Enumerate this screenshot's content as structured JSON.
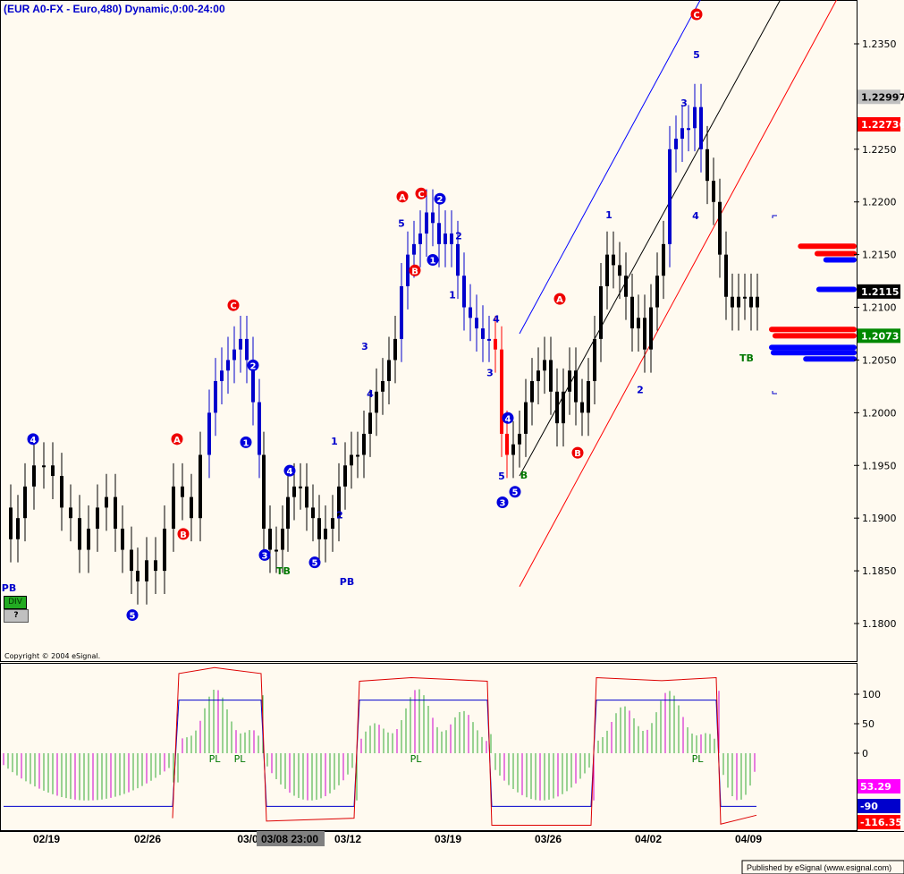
{
  "header": {
    "title": "(EUR A0-FX - Euro,480) Dynamic,0:00-24:00"
  },
  "copyright": "Copyright © 2004 eSignal.",
  "footer": "Published by eSignal (www.esignal.com)",
  "buttons": {
    "div": "DIV",
    "question": "?"
  },
  "crosshair_date": "03/08 23:00",
  "colors": {
    "up_blue": "#0000cc",
    "down_red": "#ff0000",
    "bar_black": "#000000",
    "label_green": "#007700",
    "osc_green": "#33aa33",
    "osc_magenta": "#cc00cc"
  },
  "chart_data": [
    {
      "type": "ohlc-candlestick",
      "title": "(EUR A0-FX - Euro,480) Dynamic,0:00-24:00",
      "x_tick_labels": [
        "02/19",
        "02/26",
        "03/0",
        "03/12",
        "03/19",
        "03/26",
        "04/02",
        "04/09"
      ],
      "y_tick_labels": [
        "1.2350",
        "1.2250",
        "1.2200",
        "1.2150",
        "1.2100",
        "1.2050",
        "1.2000",
        "1.1950",
        "1.1900",
        "1.1850",
        "1.1800"
      ],
      "ylim": [
        1.177,
        1.2375
      ],
      "price_tags": [
        {
          "label": "1.22997",
          "style": "gray"
        },
        {
          "label": "1.22736",
          "style": "red"
        },
        {
          "label": "1.2115",
          "style": "black"
        },
        {
          "label": "1.2073",
          "style": "green"
        }
      ],
      "close_trace": [
        [
          0,
          1.191
        ],
        [
          8,
          1.188
        ],
        [
          16,
          1.19
        ],
        [
          24,
          1.193
        ],
        [
          34,
          1.195
        ],
        [
          45,
          1.195
        ],
        [
          55,
          1.194
        ],
        [
          65,
          1.191
        ],
        [
          75,
          1.19
        ],
        [
          85,
          1.187
        ],
        [
          95,
          1.189
        ],
        [
          105,
          1.191
        ],
        [
          115,
          1.192
        ],
        [
          125,
          1.189
        ],
        [
          133,
          1.187
        ],
        [
          143,
          1.185
        ],
        [
          150,
          1.184
        ],
        [
          160,
          1.186
        ],
        [
          170,
          1.185
        ],
        [
          180,
          1.189
        ],
        [
          190,
          1.193
        ],
        [
          200,
          1.192
        ],
        [
          210,
          1.19
        ],
        [
          220,
          1.196
        ],
        [
          230,
          1.2
        ],
        [
          237,
          1.203
        ],
        [
          244,
          1.204
        ],
        [
          251,
          1.205
        ],
        [
          258,
          1.206
        ],
        [
          265,
          1.207
        ],
        [
          272,
          1.205
        ],
        [
          279,
          1.201
        ],
        [
          286,
          1.196
        ],
        [
          291,
          1.189
        ],
        [
          298,
          1.187
        ],
        [
          305,
          1.187
        ],
        [
          312,
          1.189
        ],
        [
          318,
          1.192
        ],
        [
          325,
          1.193
        ],
        [
          332,
          1.193
        ],
        [
          339,
          1.191
        ],
        [
          346,
          1.19
        ],
        [
          353,
          1.188
        ],
        [
          360,
          1.189
        ],
        [
          368,
          1.19
        ],
        [
          375,
          1.193
        ],
        [
          382,
          1.195
        ],
        [
          389,
          1.196
        ],
        [
          396,
          1.196
        ],
        [
          403,
          1.198
        ],
        [
          410,
          1.2
        ],
        [
          417,
          1.202
        ],
        [
          424,
          1.203
        ],
        [
          431,
          1.205
        ],
        [
          438,
          1.207
        ],
        [
          445,
          1.212
        ],
        [
          452,
          1.215
        ],
        [
          459,
          1.216
        ],
        [
          466,
          1.217
        ],
        [
          473,
          1.219
        ],
        [
          480,
          1.218
        ],
        [
          487,
          1.216
        ],
        [
          494,
          1.217
        ],
        [
          501,
          1.216
        ],
        [
          508,
          1.213
        ],
        [
          515,
          1.21
        ],
        [
          522,
          1.209
        ],
        [
          529,
          1.208
        ],
        [
          536,
          1.207
        ],
        [
          543,
          1.207
        ],
        [
          550,
          1.206
        ],
        [
          557,
          1.198
        ],
        [
          563,
          1.196
        ],
        [
          570,
          1.197
        ],
        [
          577,
          1.198
        ],
        [
          584,
          1.201
        ],
        [
          591,
          1.203
        ],
        [
          598,
          1.204
        ],
        [
          605,
          1.205
        ],
        [
          612,
          1.202
        ],
        [
          619,
          1.199
        ],
        [
          626,
          1.202
        ],
        [
          633,
          1.204
        ],
        [
          640,
          1.201
        ],
        [
          647,
          1.2
        ],
        [
          654,
          1.203
        ],
        [
          661,
          1.207
        ],
        [
          668,
          1.212
        ],
        [
          675,
          1.215
        ],
        [
          682,
          1.214
        ],
        [
          689,
          1.213
        ],
        [
          696,
          1.211
        ],
        [
          703,
          1.208
        ],
        [
          710,
          1.209
        ],
        [
          717,
          1.206
        ],
        [
          724,
          1.21
        ],
        [
          731,
          1.213
        ],
        [
          738,
          1.216
        ],
        [
          745,
          1.225
        ],
        [
          752,
          1.226
        ],
        [
          759,
          1.227
        ],
        [
          766,
          1.227
        ],
        [
          773,
          1.229
        ],
        [
          780,
          1.225
        ],
        [
          787,
          1.222
        ],
        [
          794,
          1.22
        ],
        [
          801,
          1.215
        ],
        [
          808,
          1.211
        ],
        [
          815,
          1.21
        ],
        [
          822,
          1.211
        ],
        [
          829,
          1.211
        ],
        [
          836,
          1.21
        ],
        [
          843,
          1.211
        ]
      ],
      "lines": {
        "channel_blue": [
          [
            577,
            1.2075
          ],
          [
            826,
            1.2465
          ]
        ],
        "channel_mid_black": [
          [
            577,
            1.194
          ],
          [
            916,
            1.2465
          ]
        ],
        "channel_red": [
          [
            577,
            1.1835
          ],
          [
            956,
            1.243
          ]
        ]
      },
      "wave_labels": [
        {
          "text": "4",
          "shape": "circle",
          "color": "blue",
          "x": 37,
          "price": 1.1975
        },
        {
          "text": "5",
          "shape": "circle",
          "color": "blue",
          "x": 148,
          "price": 1.1808
        },
        {
          "text": "A",
          "shape": "circle",
          "color": "red",
          "x": 198,
          "price": 1.1975
        },
        {
          "text": "B",
          "shape": "circle",
          "color": "red",
          "x": 205,
          "price": 1.1885
        },
        {
          "text": "C",
          "shape": "circle",
          "color": "red",
          "x": 261,
          "price": 1.2102
        },
        {
          "text": "1",
          "shape": "circle",
          "color": "blue",
          "x": 275,
          "price": 1.1972
        },
        {
          "text": "2",
          "shape": "circle",
          "color": "blue",
          "x": 283,
          "price": 1.2045
        },
        {
          "text": "3",
          "shape": "circle",
          "color": "blue",
          "x": 296,
          "price": 1.1865
        },
        {
          "text": "4",
          "shape": "circle",
          "color": "blue",
          "x": 324,
          "price": 1.1945
        },
        {
          "text": "5",
          "shape": "circle",
          "color": "blue",
          "x": 352,
          "price": 1.1858
        },
        {
          "text": "A",
          "shape": "circle",
          "color": "red",
          "x": 450,
          "price": 1.2205
        },
        {
          "text": "B",
          "shape": "circle",
          "color": "red",
          "x": 464,
          "price": 1.2135
        },
        {
          "text": "C",
          "shape": "circle",
          "color": "red",
          "x": 471,
          "price": 1.2208
        },
        {
          "text": "2",
          "shape": "circle",
          "color": "blue",
          "x": 492,
          "price": 1.2203
        },
        {
          "text": "1",
          "shape": "circle",
          "color": "blue",
          "x": 484,
          "price": 1.2145
        },
        {
          "text": "A",
          "shape": "circle",
          "color": "red",
          "x": 626,
          "price": 1.2108
        },
        {
          "text": "B",
          "shape": "circle",
          "color": "red",
          "x": 646,
          "price": 1.1962
        },
        {
          "text": "4",
          "shape": "circle",
          "color": "blue",
          "x": 568,
          "price": 1.1995
        },
        {
          "text": "3",
          "shape": "circle",
          "color": "blue",
          "x": 562,
          "price": 1.1915
        },
        {
          "text": "5",
          "shape": "circle",
          "color": "blue",
          "x": 576,
          "price": 1.1925
        },
        {
          "text": "C",
          "shape": "circle",
          "color": "red",
          "x": 779,
          "price": 1.2378
        },
        {
          "text": "1",
          "shape": "plain",
          "color": "blue",
          "x": 374,
          "price": 1.1973
        },
        {
          "text": "2",
          "shape": "plain",
          "color": "blue",
          "x": 380,
          "price": 1.1903
        },
        {
          "text": "3",
          "shape": "plain",
          "color": "blue",
          "x": 408,
          "price": 1.2063
        },
        {
          "text": "4",
          "shape": "plain",
          "color": "blue",
          "x": 414,
          "price": 1.2018
        },
        {
          "text": "5",
          "shape": "plain",
          "color": "blue",
          "x": 449,
          "price": 1.218
        },
        {
          "text": "2",
          "shape": "plain",
          "color": "blue",
          "x": 513,
          "price": 1.2168
        },
        {
          "text": "1",
          "shape": "plain",
          "color": "blue",
          "x": 506,
          "price": 1.2112
        },
        {
          "text": "4",
          "shape": "plain",
          "color": "blue",
          "x": 555,
          "price": 1.2089
        },
        {
          "text": "3",
          "shape": "plain",
          "color": "blue",
          "x": 548,
          "price": 1.2038
        },
        {
          "text": "5",
          "shape": "plain",
          "color": "blue",
          "x": 561,
          "price": 1.194
        },
        {
          "text": "1",
          "shape": "plain",
          "color": "blue",
          "x": 681,
          "price": 1.2188
        },
        {
          "text": "2",
          "shape": "plain",
          "color": "blue",
          "x": 716,
          "price": 1.2022
        },
        {
          "text": "3",
          "shape": "plain",
          "color": "blue",
          "x": 765,
          "price": 1.2294
        },
        {
          "text": "4",
          "shape": "plain",
          "color": "blue",
          "x": 778,
          "price": 1.2187
        },
        {
          "text": "5",
          "shape": "plain",
          "color": "blue",
          "x": 779,
          "price": 1.234
        },
        {
          "text": "PB",
          "shape": "plain",
          "color": "blue",
          "x": 10,
          "price": 1.1834
        },
        {
          "text": "PB",
          "shape": "plain",
          "color": "blue",
          "x": 388,
          "price": 1.184
        },
        {
          "text": "TB",
          "shape": "plain",
          "color": "green",
          "x": 317,
          "price": 1.185
        },
        {
          "text": "TB",
          "shape": "plain",
          "color": "green",
          "x": 835,
          "price": 1.2052
        },
        {
          "text": "B",
          "shape": "plain",
          "color": "green",
          "x": 586,
          "price": 1.1941
        }
      ],
      "volume_profile": [
        {
          "price": 1.2158,
          "color": "red",
          "length": 0.67
        },
        {
          "price": 1.2151,
          "color": "red",
          "length": 0.48
        },
        {
          "price": 1.2145,
          "color": "blue",
          "length": 0.38
        },
        {
          "price": 1.2117,
          "color": "blue",
          "length": 0.46
        },
        {
          "price": 1.2079,
          "color": "red",
          "length": 1.0
        },
        {
          "price": 1.2073,
          "color": "red",
          "length": 0.96
        },
        {
          "price": 1.2062,
          "color": "blue",
          "length": 1.0
        },
        {
          "price": 1.2057,
          "color": "blue",
          "length": 0.98
        },
        {
          "price": 1.2051,
          "color": "blue",
          "length": 0.61
        }
      ]
    },
    {
      "type": "oscillator",
      "y_tick_labels": [
        "100",
        "50",
        "0"
      ],
      "ylim": [
        -130,
        145
      ],
      "value_tags": [
        {
          "label": "53.29",
          "color": "magenta"
        },
        {
          "label": "-90",
          "color": "blue"
        },
        {
          "label": "-116.35",
          "color": "red"
        }
      ],
      "pl_labels": [
        {
          "text": "PL",
          "x": 240
        },
        {
          "text": "PL",
          "x": 268
        },
        {
          "text": "PL",
          "x": 465
        },
        {
          "text": "PL",
          "x": 780
        }
      ],
      "blue_step": [
        [
          4,
          -90
        ],
        [
          193,
          -90
        ],
        [
          200,
          90
        ],
        [
          292,
          90
        ],
        [
          298,
          -90
        ],
        [
          396,
          -90
        ],
        [
          402,
          90
        ],
        [
          545,
          90
        ],
        [
          550,
          -90
        ],
        [
          661,
          -90
        ],
        [
          667,
          90
        ],
        [
          801,
          90
        ],
        [
          806,
          -90
        ],
        [
          846,
          -90
        ]
      ],
      "red_envelope": [
        [
          193,
          -110
        ],
        [
          200,
          135
        ],
        [
          240,
          145
        ],
        [
          292,
          135
        ],
        [
          298,
          -115
        ],
        [
          396,
          -110
        ],
        [
          402,
          122
        ],
        [
          460,
          128
        ],
        [
          545,
          122
        ],
        [
          550,
          -122
        ],
        [
          661,
          -122
        ],
        [
          667,
          128
        ],
        [
          740,
          123
        ],
        [
          801,
          128
        ],
        [
          806,
          -120
        ],
        [
          846,
          -105
        ]
      ]
    }
  ]
}
